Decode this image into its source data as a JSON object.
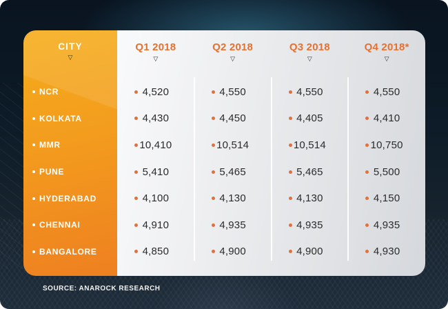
{
  "chart_data": {
    "type": "table",
    "title": "",
    "columns": [
      "CITY",
      "Q1 2018",
      "Q2 2018",
      "Q3 2018",
      "Q4 2018*"
    ],
    "rows": [
      [
        "NCR",
        4520,
        4550,
        4550,
        4550
      ],
      [
        "KOLKATA",
        4430,
        4450,
        4405,
        4410
      ],
      [
        "MMR",
        10410,
        10514,
        10514,
        10750
      ],
      [
        "PUNE",
        5410,
        5465,
        5465,
        5500
      ],
      [
        "HYDERABAD",
        4100,
        4130,
        4130,
        4150
      ],
      [
        "CHENNAI",
        4910,
        4935,
        4935,
        4935
      ],
      [
        "BANGALORE",
        4850,
        4900,
        4900,
        4930
      ]
    ],
    "source": "SOURCE: ANAROCK RESEARCH"
  },
  "table": {
    "sort_glyph": "▽",
    "city_column": {
      "header": "CITY",
      "cities": [
        "NCR",
        "KOLKATA",
        "MMR",
        "PUNE",
        "HYDERABAD",
        "CHENNAI",
        "BANGALORE"
      ]
    },
    "quarter_columns": [
      {
        "label": "Q1 2018",
        "values": [
          "4,520",
          "4,430",
          "10,410",
          "5,410",
          "4,100",
          "4,910",
          "4,850"
        ]
      },
      {
        "label": "Q2 2018",
        "values": [
          "4,550",
          "4,450",
          "10,514",
          "5,465",
          "4,130",
          "4,935",
          "4,900"
        ]
      },
      {
        "label": "Q3 2018",
        "values": [
          "4,550",
          "4,405",
          "10,514",
          "5,465",
          "4,130",
          "4,935",
          "4,900"
        ]
      },
      {
        "label": "Q4 2018*",
        "values": [
          "4,550",
          "4,410",
          "10,750",
          "5,500",
          "4,150",
          "4,935",
          "4,930"
        ]
      }
    ]
  },
  "footer": {
    "source_label": "SOURCE: ANAROCK RESEARCH"
  },
  "colors": {
    "accent_gold": "#f5ad1b",
    "accent_orange": "#ee8020",
    "header_text_orange": "#e8702e",
    "bullet_orange": "#e0713c",
    "panel_light": "#ecedef",
    "background_navy": "#0d1c28",
    "value_text": "#2b2b2b"
  }
}
